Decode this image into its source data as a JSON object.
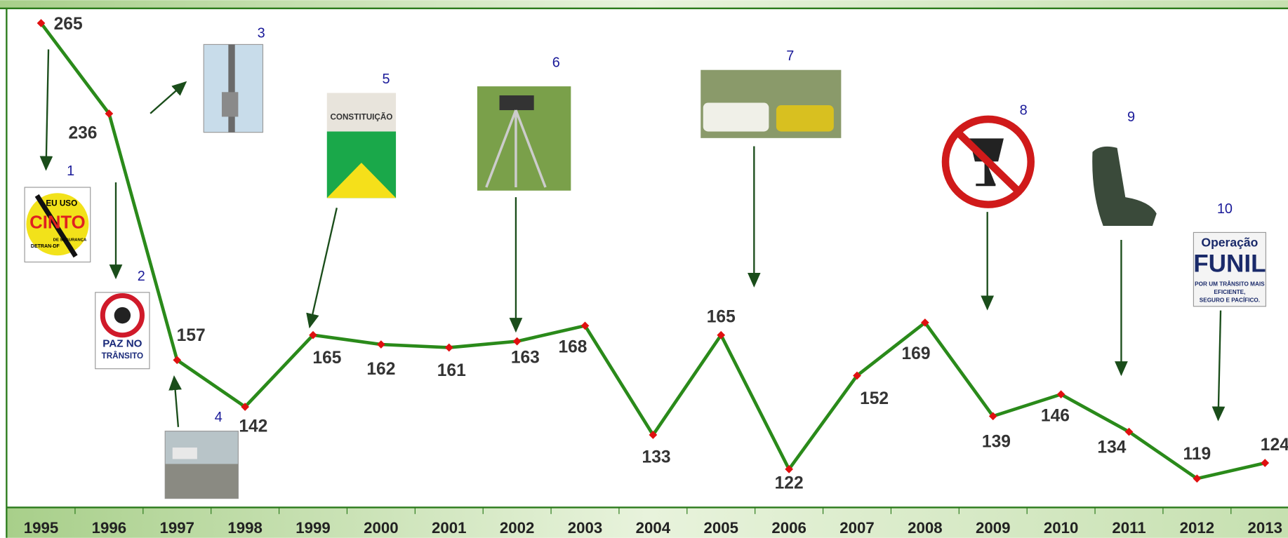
{
  "chart_data": {
    "type": "line",
    "categories": [
      "1995",
      "1996",
      "1997",
      "1998",
      "1999",
      "2000",
      "2001",
      "2002",
      "2003",
      "2004",
      "2005",
      "2006",
      "2007",
      "2008",
      "2009",
      "2010",
      "2011",
      "2012",
      "2013"
    ],
    "values": [
      265,
      236,
      157,
      142,
      165,
      162,
      161,
      163,
      168,
      133,
      165,
      122,
      152,
      169,
      139,
      146,
      134,
      119,
      124
    ],
    "color": "#2a8a1a",
    "marker_color": "#e01010",
    "ylim": [
      110,
      270
    ],
    "callouts": [
      {
        "label": "1",
        "texts": [
          "EU USO",
          "CINTO",
          "DE SEGURANÇA",
          "DETRAN-DF"
        ]
      },
      {
        "label": "2",
        "texts": [
          "PAZ NO",
          "TRÂNSITO"
        ]
      },
      {
        "label": "3",
        "texts": []
      },
      {
        "label": "4",
        "texts": []
      },
      {
        "label": "5",
        "texts": [
          "CONSTITUIÇÃO"
        ]
      },
      {
        "label": "6",
        "texts": []
      },
      {
        "label": "7",
        "texts": []
      },
      {
        "label": "8",
        "texts": []
      },
      {
        "label": "9",
        "texts": []
      },
      {
        "label": "10",
        "texts": [
          "Operação",
          "FUNIL",
          "POR UM TRÂNSITO MAIS",
          "EFICIENTE,",
          "SEGURO E PACÍFICO."
        ]
      }
    ]
  }
}
